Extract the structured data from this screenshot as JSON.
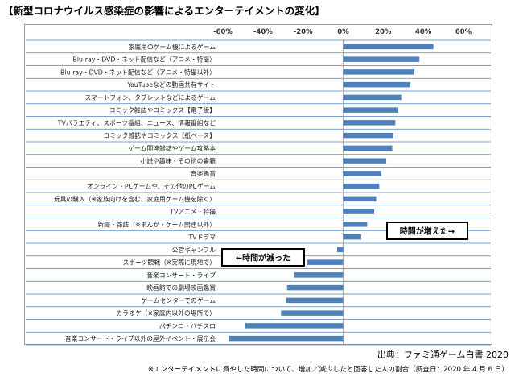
{
  "title": "【新型コロナウイルス感染症の影響によるエンターテイメントの変化】",
  "source": "出典：ファミ通ゲーム白書 2020",
  "footnote": "※エンターテイメントに費やした時間について、増加／減少したと回答した人の割合（調査日：2020 年 4 月 6 日）",
  "colors": {
    "bar": "#4f81bd",
    "grid": "#cfcfcf",
    "gridline": "#4f81bd"
  },
  "chart_data": {
    "type": "bar",
    "orientation": "horizontal",
    "xlim": [
      -0.6,
      0.6
    ],
    "xticks": [
      -0.6,
      -0.4,
      -0.2,
      0,
      0.2,
      0.4,
      0.6
    ],
    "xtick_labels": [
      "-60%",
      "-40%",
      "-20%",
      "0%",
      "20%",
      "40%",
      "60%"
    ],
    "annotations": {
      "increase": "時間が増えた→",
      "decrease": "←時間が減った"
    },
    "categories": [
      "家庭用のゲーム機によるゲーム",
      "Blu-ray・DVD・ネット配信など（アニメ・特撮）",
      "Blu-ray・DVD・ネット配信など（アニメ・特撮以外）",
      "YouTubeなどの動画共有サイト",
      "スマートフォン、タブレットなどによるゲーム",
      "コミック雑誌やコミックス【電子版】",
      "TVバラエティ、スポーツ番組、ニュース、情報番組など",
      "コミック雑誌やコミックス【紙ベース】",
      "ゲーム関連雑誌やゲーム攻略本",
      "小説や趣味・その他の書籍",
      "音楽鑑賞",
      "オンライン・PCゲームや、その他のPCゲーム",
      "玩具の購入（※家族向けを含む、家庭用ゲーム機を除く）",
      "TVアニメ・特撮",
      "新聞・雑誌（※まんが・ゲーム関連以外）",
      "TVドラマ",
      "公営ギャンブル",
      "スポーツ観戦（※実際に現地で）",
      "音楽コンサート・ライブ",
      "映画館での劇場映画鑑賞",
      "ゲームセンターでのゲーム",
      "カラオケ（※家庭内以外の場所で）",
      "パチンコ・パチスロ",
      "音楽コンサート・ライブ以外の屋外イベント・展示会"
    ],
    "values": [
      0.45,
      0.38,
      0.355,
      0.335,
      0.29,
      0.275,
      0.26,
      0.25,
      0.245,
      0.215,
      0.19,
      0.18,
      0.165,
      0.155,
      0.12,
      0.09,
      -0.03,
      -0.18,
      -0.245,
      -0.28,
      -0.285,
      -0.31,
      -0.49,
      -0.57
    ]
  }
}
